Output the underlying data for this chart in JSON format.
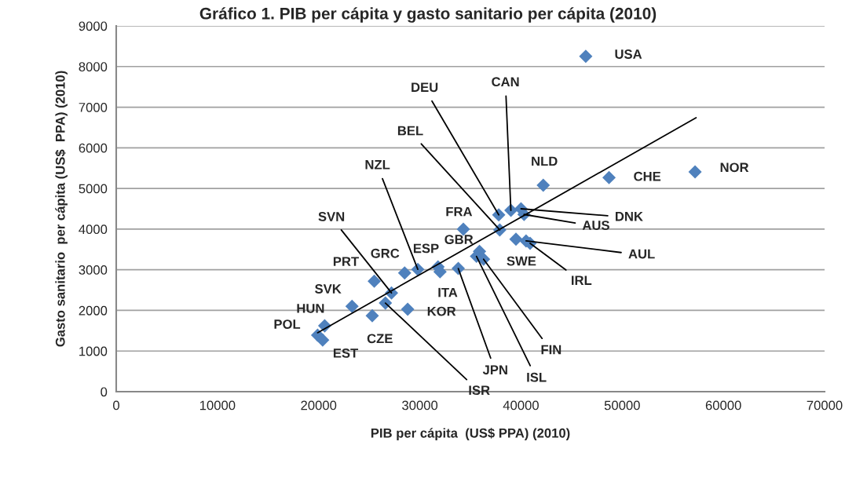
{
  "chart_data": {
    "type": "scatter",
    "title": "Gráfico 1. PIB per cápita y gasto sanitario per cápita (2010)",
    "xlabel": "PIB per cápita  (US$ PPA) (2010)",
    "ylabel": "Gasto sanitario  per cápita (US$  PPA) (2010)",
    "series": [
      {
        "color": "#4f81bd",
        "marker": "diamond",
        "x": [
          46400,
          48700,
          57200,
          42200,
          37800,
          39000,
          40000,
          40300,
          37900,
          34300,
          29800,
          35900,
          39500,
          40500,
          40900,
          27200,
          28500,
          31800,
          25500,
          32000,
          33800,
          35600,
          36300,
          23300,
          28800,
          20600,
          25300,
          19900,
          20400,
          26600
        ],
        "values": [
          8250,
          5270,
          5410,
          5080,
          4350,
          4460,
          4500,
          4360,
          3980,
          4000,
          3010,
          3450,
          3750,
          3710,
          3650,
          2430,
          2920,
          3070,
          2720,
          2950,
          3030,
          3330,
          3260,
          2100,
          2030,
          1620,
          1870,
          1390,
          1270,
          2180
        ]
      },
      {
        "type": "line",
        "color": "#000000",
        "marker": "none",
        "line_style": "solid",
        "x": [
          19900,
          57300
        ],
        "values": [
          1450,
          6740
        ]
      }
    ],
    "annotations": [
      {
        "text": "USA",
        "x": 46400,
        "y": 8250
      },
      {
        "text": "CHE",
        "x": 48700,
        "y": 5270
      },
      {
        "text": "NOR",
        "x": 57200,
        "y": 5410
      },
      {
        "text": "NLD",
        "x": 42200,
        "y": 5080
      },
      {
        "text": "DEU",
        "x": 37800,
        "y": 4350
      },
      {
        "text": "CAN",
        "x": 39000,
        "y": 4460
      },
      {
        "text": "DNK",
        "x": 40000,
        "y": 4500
      },
      {
        "text": "AUS",
        "x": 40300,
        "y": 4360
      },
      {
        "text": "BEL",
        "x": 37900,
        "y": 3980
      },
      {
        "text": "FRA",
        "x": 34300,
        "y": 4000
      },
      {
        "text": "NZL",
        "x": 29800,
        "y": 3010
      },
      {
        "text": "GBR",
        "x": 35900,
        "y": 3450
      },
      {
        "text": "SWE",
        "x": 39500,
        "y": 3750
      },
      {
        "text": "AUL",
        "x": 40500,
        "y": 3710
      },
      {
        "text": "IRL",
        "x": 40900,
        "y": 3650
      },
      {
        "text": "SVN",
        "x": 27200,
        "y": 2430
      },
      {
        "text": "GRC",
        "x": 28500,
        "y": 2920
      },
      {
        "text": "ESP",
        "x": 31800,
        "y": 3070
      },
      {
        "text": "PRT",
        "x": 25500,
        "y": 2720
      },
      {
        "text": "ITA",
        "x": 32000,
        "y": 2950
      },
      {
        "text": "JPN",
        "x": 33800,
        "y": 3030
      },
      {
        "text": "ISL",
        "x": 35600,
        "y": 3330
      },
      {
        "text": "FIN",
        "x": 36300,
        "y": 3260
      },
      {
        "text": "SVK",
        "x": 23300,
        "y": 2100
      },
      {
        "text": "KOR",
        "x": 28800,
        "y": 2030
      },
      {
        "text": "HUN",
        "x": 20600,
        "y": 1620
      },
      {
        "text": "CZE",
        "x": 25300,
        "y": 1870
      },
      {
        "text": "POL",
        "x": 19900,
        "y": 1390
      },
      {
        "text": "EST",
        "x": 20400,
        "y": 1270
      },
      {
        "text": "ISR",
        "x": 26600,
        "y": 2180
      }
    ],
    "xlim": [
      0,
      70000
    ],
    "xticks": [
      0,
      10000,
      20000,
      30000,
      40000,
      50000,
      60000,
      70000
    ],
    "ylim": [
      0,
      9000
    ],
    "yticks": [
      0,
      1000,
      2000,
      3000,
      4000,
      5000,
      6000,
      7000,
      8000,
      9000
    ],
    "grid": "y",
    "legend": false
  }
}
